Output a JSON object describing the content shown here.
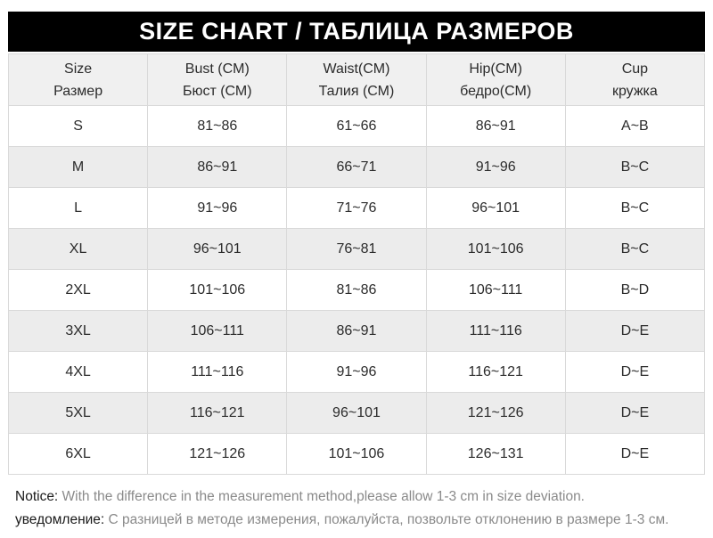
{
  "title": "SIZE CHART / ТАБЛИЦА РАЗМЕРОВ",
  "chart_data": {
    "type": "table",
    "title": "SIZE CHART / ТАБЛИЦА РАЗМЕРОВ",
    "headers": [
      {
        "line1": "Size",
        "line2": "Размер"
      },
      {
        "line1": "Bust (CM)",
        "line2": "Бюст (СМ)"
      },
      {
        "line1": "Waist(CM)",
        "line2": "Талия (СМ)"
      },
      {
        "line1": "Hip(CM)",
        "line2": "бедро(СМ)"
      },
      {
        "line1": "Cup",
        "line2": "кружка"
      }
    ],
    "rows": [
      [
        "S",
        "81~86",
        "61~66",
        "86~91",
        "A~B"
      ],
      [
        "M",
        "86~91",
        "66~71",
        "91~96",
        "B~C"
      ],
      [
        "L",
        "91~96",
        "71~76",
        "96~101",
        "B~C"
      ],
      [
        "XL",
        "96~101",
        "76~81",
        "101~106",
        "B~C"
      ],
      [
        "2XL",
        "101~106",
        "81~86",
        "106~111",
        "B~D"
      ],
      [
        "3XL",
        "106~111",
        "86~91",
        "111~116",
        "D~E"
      ],
      [
        "4XL",
        "111~116",
        "91~96",
        "116~121",
        "D~E"
      ],
      [
        "5XL",
        "116~121",
        "96~101",
        "121~126",
        "D~E"
      ],
      [
        "6XL",
        "121~126",
        "101~106",
        "126~131",
        "D~E"
      ]
    ]
  },
  "notice": {
    "en_label": "Notice:",
    "en_text": " With the difference in the measurement method,please allow 1-3 cm in size deviation.",
    "ru_label": "уведомление:",
    "ru_text": " С разницей в методе измерения, пожалуйста, позвольте отклонению в размере 1-3 см."
  },
  "colors": {
    "title_bar_bg": "#000000",
    "title_text": "#ffffff",
    "header_row_bg": "#f0f0f0",
    "alt_row_bg": "#ececec",
    "cell_border": "#d9d9d9",
    "cell_text": "#2b2b2b",
    "notice_text": "#8a8a8a",
    "notice_label": "#1a1a1a"
  }
}
